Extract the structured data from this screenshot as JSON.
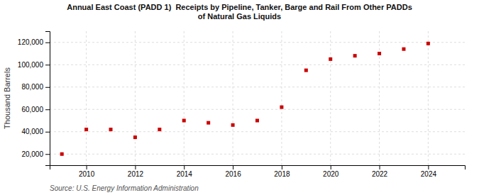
{
  "chart_data": {
    "type": "scatter",
    "title": "Annual East Coast (PADD 1)  Receipts by Pipeline, Tanker, Barge and Rail From Other PADDs\nof Natural Gas Liquids",
    "ylabel": "Thousand Barrels",
    "annotations": [
      "Source: U.S. Energy Information Administration"
    ],
    "x": [
      2009,
      2010,
      2011,
      2012,
      2013,
      2014,
      2015,
      2016,
      2017,
      2018,
      2019,
      2020,
      2021,
      2022,
      2023,
      2024
    ],
    "values": [
      20000,
      42000,
      42000,
      35000,
      42000,
      50000,
      48000,
      46000,
      50000,
      62000,
      95000,
      105000,
      108000,
      110000,
      114000,
      119000
    ],
    "color": "#cc0000",
    "marker": "square",
    "xlim": [
      2008.5,
      2025.5
    ],
    "xticks": [
      2010,
      2012,
      2014,
      2016,
      2018,
      2020,
      2022,
      2024
    ],
    "ylim": [
      10000,
      130000
    ],
    "yticks": [
      {
        "value": 20000,
        "label": "20,000"
      },
      {
        "value": 40000,
        "label": "40,000"
      },
      {
        "value": 60000,
        "label": "60,000"
      },
      {
        "value": 80000,
        "label": "80,000"
      },
      {
        "value": 100000,
        "label": "100,000"
      },
      {
        "value": 120000,
        "label": "120,000"
      }
    ],
    "grid": true
  }
}
